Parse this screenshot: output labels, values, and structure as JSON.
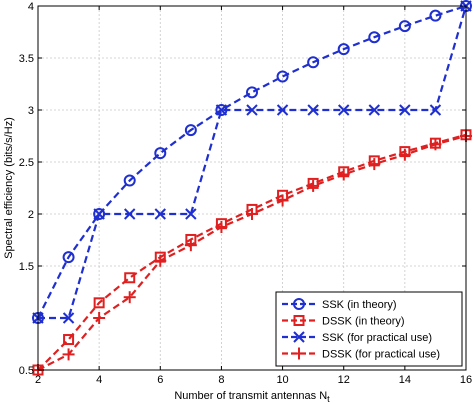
{
  "chart_data": {
    "type": "line",
    "title": "",
    "xlabel": "Number of transmit antennas N",
    "xlabel_subscript": "t",
    "ylabel": "Spectral efficiency (bits/s/Hz)",
    "xlim": [
      2,
      16
    ],
    "ylim": [
      0.5,
      4
    ],
    "xticks": [
      2,
      4,
      6,
      8,
      10,
      12,
      14,
      16
    ],
    "yticks": [
      0.5,
      1.5,
      2,
      2.5,
      3,
      3.5,
      4
    ],
    "ytick_labels": [
      "0.5",
      "1.5",
      "2",
      "2.5",
      "3",
      "3.5",
      "4"
    ],
    "grid": true,
    "legend_position": "bottom-right",
    "x": [
      2,
      3,
      4,
      5,
      6,
      7,
      8,
      9,
      10,
      11,
      12,
      13,
      14,
      15,
      16
    ],
    "series": [
      {
        "name": "SSK (in theory)",
        "color": "#1f2fd0",
        "marker": "circle",
        "values": [
          1.0,
          1.585,
          2.0,
          2.322,
          2.585,
          2.807,
          3.0,
          3.17,
          3.322,
          3.459,
          3.585,
          3.7,
          3.807,
          3.907,
          4.0
        ]
      },
      {
        "name": "DSSK (in theory)",
        "color": "#e02020",
        "marker": "square",
        "values": [
          0.5,
          0.793,
          1.146,
          1.387,
          1.585,
          1.755,
          1.907,
          2.044,
          2.18,
          2.294,
          2.406,
          2.511,
          2.6,
          2.681,
          2.762
        ]
      },
      {
        "name": "SSK (for practical use)",
        "color": "#1f2fd0",
        "marker": "x",
        "values": [
          1.0,
          1.0,
          2.0,
          2.0,
          2.0,
          2.0,
          3.0,
          3.0,
          3.0,
          3.0,
          3.0,
          3.0,
          3.0,
          3.0,
          4.0
        ]
      },
      {
        "name": "DSSK (for practical use)",
        "color": "#e02020",
        "marker": "plus",
        "values": [
          0.5,
          0.65,
          1.0,
          1.2,
          1.55,
          1.7,
          1.875,
          2.0,
          2.13,
          2.27,
          2.38,
          2.48,
          2.57,
          2.67,
          2.75
        ]
      }
    ]
  }
}
